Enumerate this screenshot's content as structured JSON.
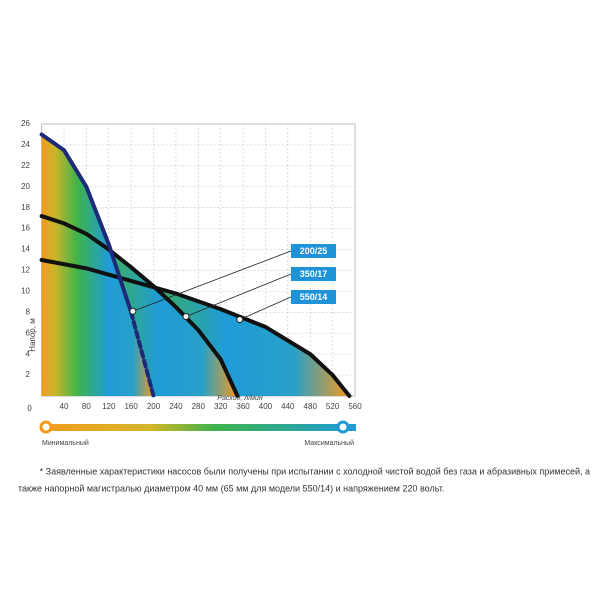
{
  "chart_data": {
    "type": "line",
    "y_label": "Напор, м",
    "x_label": "Расход, л/мин",
    "xlim": [
      0,
      560
    ],
    "ylim": [
      0,
      26
    ],
    "xticks": [
      0,
      40,
      80,
      120,
      160,
      200,
      240,
      280,
      320,
      360,
      400,
      440,
      480,
      520,
      560
    ],
    "yticks": [
      2,
      4,
      6,
      8,
      10,
      12,
      14,
      16,
      18,
      20,
      22,
      24,
      26
    ],
    "grid": true,
    "series": [
      {
        "name": "550/14",
        "color": "#111111",
        "x": [
          0,
          80,
          160,
          240,
          320,
          400,
          480,
          520,
          550
        ],
        "values": [
          13,
          12.2,
          11,
          9.8,
          8.3,
          6.6,
          4,
          2,
          0
        ],
        "label_point": {
          "x": 354,
          "y": 7.3
        }
      },
      {
        "name": "350/17",
        "color": "#111111",
        "x": [
          0,
          40,
          80,
          120,
          160,
          200,
          240,
          280,
          320,
          350
        ],
        "values": [
          17.2,
          16.5,
          15.5,
          14,
          12.3,
          10.5,
          8.5,
          6.3,
          3.5,
          0
        ],
        "label_point": {
          "x": 258,
          "y": 7.6
        }
      },
      {
        "name": "200/25",
        "color": "#1c2a78",
        "x": [
          0,
          40,
          80,
          120,
          160,
          200
        ],
        "values": [
          25,
          23.5,
          20,
          14.5,
          8,
          0
        ],
        "label_point": {
          "x": 163,
          "y": 8.1
        },
        "dashed_from": 160
      }
    ],
    "legend_color": "#1e93d8",
    "scale_min_label": "Минимальный",
    "scale_max_label": "Максимальный",
    "footnote": [
      "* Заявленные характеристики насосов были получены при испытании с холодной чистой водой без газа и абразивных примесей, а",
      "также напорной магистралью диаметром 40 мм (65 мм для модели 550/14) и напряжением 220 вольт."
    ]
  }
}
